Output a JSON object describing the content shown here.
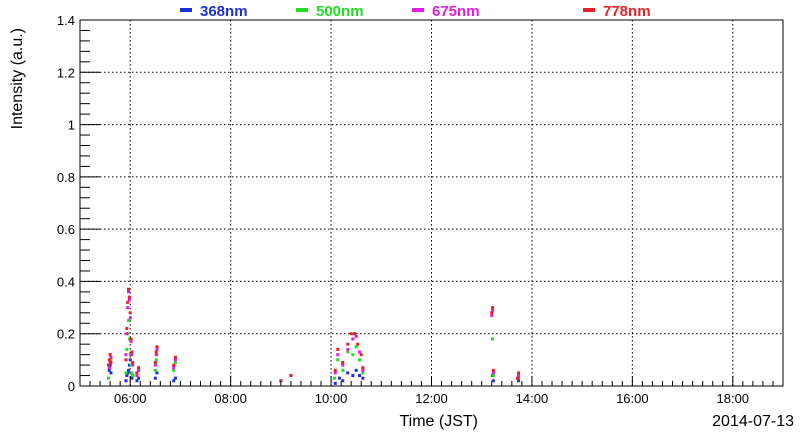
{
  "chart_data": {
    "type": "scatter",
    "title": "",
    "xlabel": "Time (JST)",
    "ylabel": "Intensity (a.u.)",
    "date": "2014-07-13",
    "xlim": [
      "05:00",
      "19:00"
    ],
    "ylim": [
      0,
      1.4
    ],
    "x_ticks": [
      "06:00",
      "08:00",
      "10:00",
      "12:00",
      "14:00",
      "16:00",
      "18:00"
    ],
    "y_ticks": [
      "0",
      "0.2",
      "0.4",
      "0.6",
      "0.8",
      "1",
      "1.2",
      "1.4"
    ],
    "grid": true,
    "legend_position": "top",
    "series": [
      {
        "name": "368nm",
        "color": "#1f2fd6",
        "points": [
          [
            "05:35",
            0.06
          ],
          [
            "05:36",
            0.08
          ],
          [
            "05:37",
            0.05
          ],
          [
            "05:55",
            0.02
          ],
          [
            "05:56",
            0.04
          ],
          [
            "05:57",
            0.05
          ],
          [
            "05:58",
            0.06
          ],
          [
            "05:59",
            0.08
          ],
          [
            "06:00",
            0.1
          ],
          [
            "06:01",
            0.05
          ],
          [
            "06:02",
            0.03
          ],
          [
            "06:03",
            0.04
          ],
          [
            "06:08",
            0.02
          ],
          [
            "06:10",
            0.03
          ],
          [
            "06:30",
            0.03
          ],
          [
            "06:32",
            0.05
          ],
          [
            "06:52",
            0.02
          ],
          [
            "06:54",
            0.03
          ],
          [
            "10:05",
            0.01
          ],
          [
            "10:10",
            0.03
          ],
          [
            "10:14",
            0.02
          ],
          [
            "10:20",
            0.05
          ],
          [
            "10:26",
            0.04
          ],
          [
            "10:30",
            0.06
          ],
          [
            "10:34",
            0.04
          ],
          [
            "10:38",
            0.03
          ],
          [
            "13:13",
            0.04
          ],
          [
            "13:14",
            0.02
          ],
          [
            "13:44",
            0.02
          ]
        ]
      },
      {
        "name": "500nm",
        "color": "#22dd22",
        "points": [
          [
            "05:34",
            0.03
          ],
          [
            "05:36",
            0.07
          ],
          [
            "05:37",
            0.1
          ],
          [
            "05:55",
            0.05
          ],
          [
            "05:56",
            0.14
          ],
          [
            "05:57",
            0.2
          ],
          [
            "05:58",
            0.25
          ],
          [
            "05:59",
            0.18
          ],
          [
            "06:00",
            0.12
          ],
          [
            "06:01",
            0.08
          ],
          [
            "06:02",
            0.05
          ],
          [
            "06:03",
            0.04
          ],
          [
            "06:08",
            0.04
          ],
          [
            "06:10",
            0.06
          ],
          [
            "06:30",
            0.06
          ],
          [
            "06:31",
            0.1
          ],
          [
            "06:32",
            0.12
          ],
          [
            "06:52",
            0.06
          ],
          [
            "06:54",
            0.09
          ],
          [
            "10:04",
            0.03
          ],
          [
            "10:08",
            0.1
          ],
          [
            "10:14",
            0.06
          ],
          [
            "10:20",
            0.13
          ],
          [
            "10:26",
            0.12
          ],
          [
            "10:30",
            0.15
          ],
          [
            "10:34",
            0.1
          ],
          [
            "10:38",
            0.05
          ],
          [
            "13:13",
            0.18
          ],
          [
            "13:14",
            0.04
          ],
          [
            "13:44",
            0.03
          ]
        ]
      },
      {
        "name": "675nm",
        "color": "#e01ee0",
        "points": [
          [
            "05:35",
            0.07
          ],
          [
            "05:36",
            0.09
          ],
          [
            "05:37",
            0.11
          ],
          [
            "05:55",
            0.12
          ],
          [
            "05:56",
            0.2
          ],
          [
            "05:57",
            0.3
          ],
          [
            "05:58",
            0.36
          ],
          [
            "05:59",
            0.33
          ],
          [
            "06:00",
            0.26
          ],
          [
            "06:01",
            0.17
          ],
          [
            "06:02",
            0.12
          ],
          [
            "06:03",
            0.08
          ],
          [
            "06:08",
            0.04
          ],
          [
            "06:10",
            0.06
          ],
          [
            "06:30",
            0.08
          ],
          [
            "06:31",
            0.12
          ],
          [
            "06:32",
            0.14
          ],
          [
            "06:52",
            0.07
          ],
          [
            "06:54",
            0.1
          ],
          [
            "09:00",
            0.02
          ],
          [
            "09:12",
            0.04
          ],
          [
            "10:05",
            0.05
          ],
          [
            "10:08",
            0.12
          ],
          [
            "10:14",
            0.08
          ],
          [
            "10:20",
            0.14
          ],
          [
            "10:26",
            0.18
          ],
          [
            "10:30",
            0.19
          ],
          [
            "10:34",
            0.13
          ],
          [
            "10:38",
            0.06
          ],
          [
            "13:12",
            0.27
          ],
          [
            "13:13",
            0.29
          ],
          [
            "13:14",
            0.05
          ],
          [
            "13:43",
            0.03
          ],
          [
            "13:44",
            0.04
          ]
        ]
      },
      {
        "name": "778nm",
        "color": "#e8202a",
        "points": [
          [
            "05:34",
            0.08
          ],
          [
            "05:35",
            0.1
          ],
          [
            "05:36",
            0.12
          ],
          [
            "05:37",
            0.09
          ],
          [
            "05:55",
            0.1
          ],
          [
            "05:56",
            0.22
          ],
          [
            "05:57",
            0.32
          ],
          [
            "05:58",
            0.37
          ],
          [
            "05:59",
            0.34
          ],
          [
            "06:00",
            0.28
          ],
          [
            "06:01",
            0.18
          ],
          [
            "06:02",
            0.13
          ],
          [
            "06:03",
            0.09
          ],
          [
            "06:08",
            0.05
          ],
          [
            "06:10",
            0.07
          ],
          [
            "06:30",
            0.09
          ],
          [
            "06:31",
            0.13
          ],
          [
            "06:32",
            0.15
          ],
          [
            "06:52",
            0.08
          ],
          [
            "06:54",
            0.11
          ],
          [
            "09:00",
            0.02
          ],
          [
            "09:12",
            0.04
          ],
          [
            "10:05",
            0.06
          ],
          [
            "10:08",
            0.14
          ],
          [
            "10:14",
            0.09
          ],
          [
            "10:20",
            0.16
          ],
          [
            "10:24",
            0.2
          ],
          [
            "10:28",
            0.2
          ],
          [
            "10:32",
            0.16
          ],
          [
            "10:36",
            0.12
          ],
          [
            "10:38",
            0.07
          ],
          [
            "13:12",
            0.28
          ],
          [
            "13:13",
            0.3
          ],
          [
            "13:14",
            0.06
          ],
          [
            "13:43",
            0.03
          ],
          [
            "13:44",
            0.05
          ]
        ]
      }
    ]
  }
}
